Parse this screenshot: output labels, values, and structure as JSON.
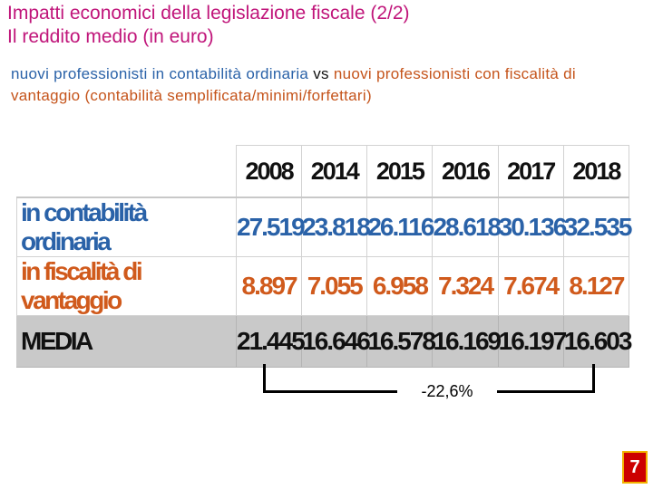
{
  "title": {
    "line1": "Impatti economici della legislazione fiscale (2/2)",
    "line2": "Il reddito medio (in euro)"
  },
  "subtitle": {
    "part1": "nuovi professionisti in contabilità ordinaria",
    "vs": " vs ",
    "part2": "nuovi professionisti con fiscalità di vantaggio (contabilità semplificata/minimi/forfettari)"
  },
  "table": {
    "years": [
      "2008",
      "2014",
      "2015",
      "2016",
      "2017",
      "2018"
    ],
    "rows": [
      {
        "label": "in contabilità ordinaria",
        "values": [
          "27.519",
          "23.818",
          "26.116",
          "28.618",
          "30.136",
          "32.535"
        ]
      },
      {
        "label": "in fiscalità di vantaggio",
        "values": [
          "8.897",
          "7.055",
          "6.958",
          "7.324",
          "7.674",
          "8.127"
        ]
      },
      {
        "label": "MEDIA",
        "values": [
          "21.445",
          "16.646",
          "16.578",
          "16.169",
          "16.197",
          "16.603"
        ]
      }
    ]
  },
  "change_label": "-22,6%",
  "page_number": "7",
  "colors": {
    "title": "#c0157a",
    "ordinaria": "#2a62a8",
    "vantaggio": "#d05a1c",
    "media_bg": "#c9c9c9",
    "page_badge": "#cc0000"
  }
}
